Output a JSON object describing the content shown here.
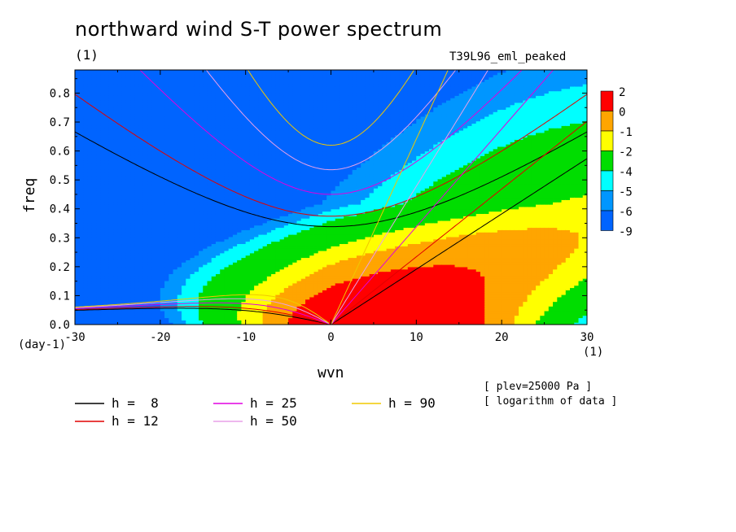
{
  "title": "northward wind S-T power spectrum",
  "title_unit": "(1)",
  "run_id": "T39L96_eml_peaked",
  "notes": {
    "plev": "[ plev=25000 Pa ]",
    "transform": "[ logarithm of data ]"
  },
  "chart_data": {
    "type": "heatmap",
    "xlabel": "wvn",
    "ylabel": "freq",
    "x_unit": "(1)",
    "y_unit": "(day-1)",
    "xlim": [
      -30,
      30
    ],
    "ylim": [
      0,
      0.88
    ],
    "x_ticks": [
      -30,
      -20,
      -10,
      0,
      10,
      20,
      30
    ],
    "y_ticks": [
      0.0,
      0.1,
      0.2,
      0.3,
      0.4,
      0.5,
      0.6,
      0.7,
      0.8
    ],
    "colorbar": {
      "labels": [
        "2",
        "0",
        "-1",
        "-2",
        "-4",
        "-5",
        "-6",
        "-9"
      ],
      "colors": [
        "#ff0000",
        "#ffa500",
        "#ffff00",
        "#00dd00",
        "#00ffff",
        "#0096ff",
        "#0064ff"
      ],
      "levels": [
        2,
        0,
        -1,
        -2,
        -4,
        -5,
        -6,
        -9
      ]
    },
    "contour_levels_approx": [
      -6,
      -5,
      -4,
      -2,
      -1,
      0
    ],
    "dispersion_curves": [
      {
        "label": "h =  8",
        "equivalent_depth": 8,
        "color": "#000000"
      },
      {
        "label": "h = 12",
        "equivalent_depth": 12,
        "color": "#e00000"
      },
      {
        "label": "h = 25",
        "equivalent_depth": 25,
        "color": "#e000e0"
      },
      {
        "label": "h = 50",
        "equivalent_depth": 50,
        "color": "#e8a0e8"
      },
      {
        "label": "h = 90",
        "equivalent_depth": 90,
        "color": "#f0c800"
      }
    ],
    "legend_placement": "bottom"
  }
}
